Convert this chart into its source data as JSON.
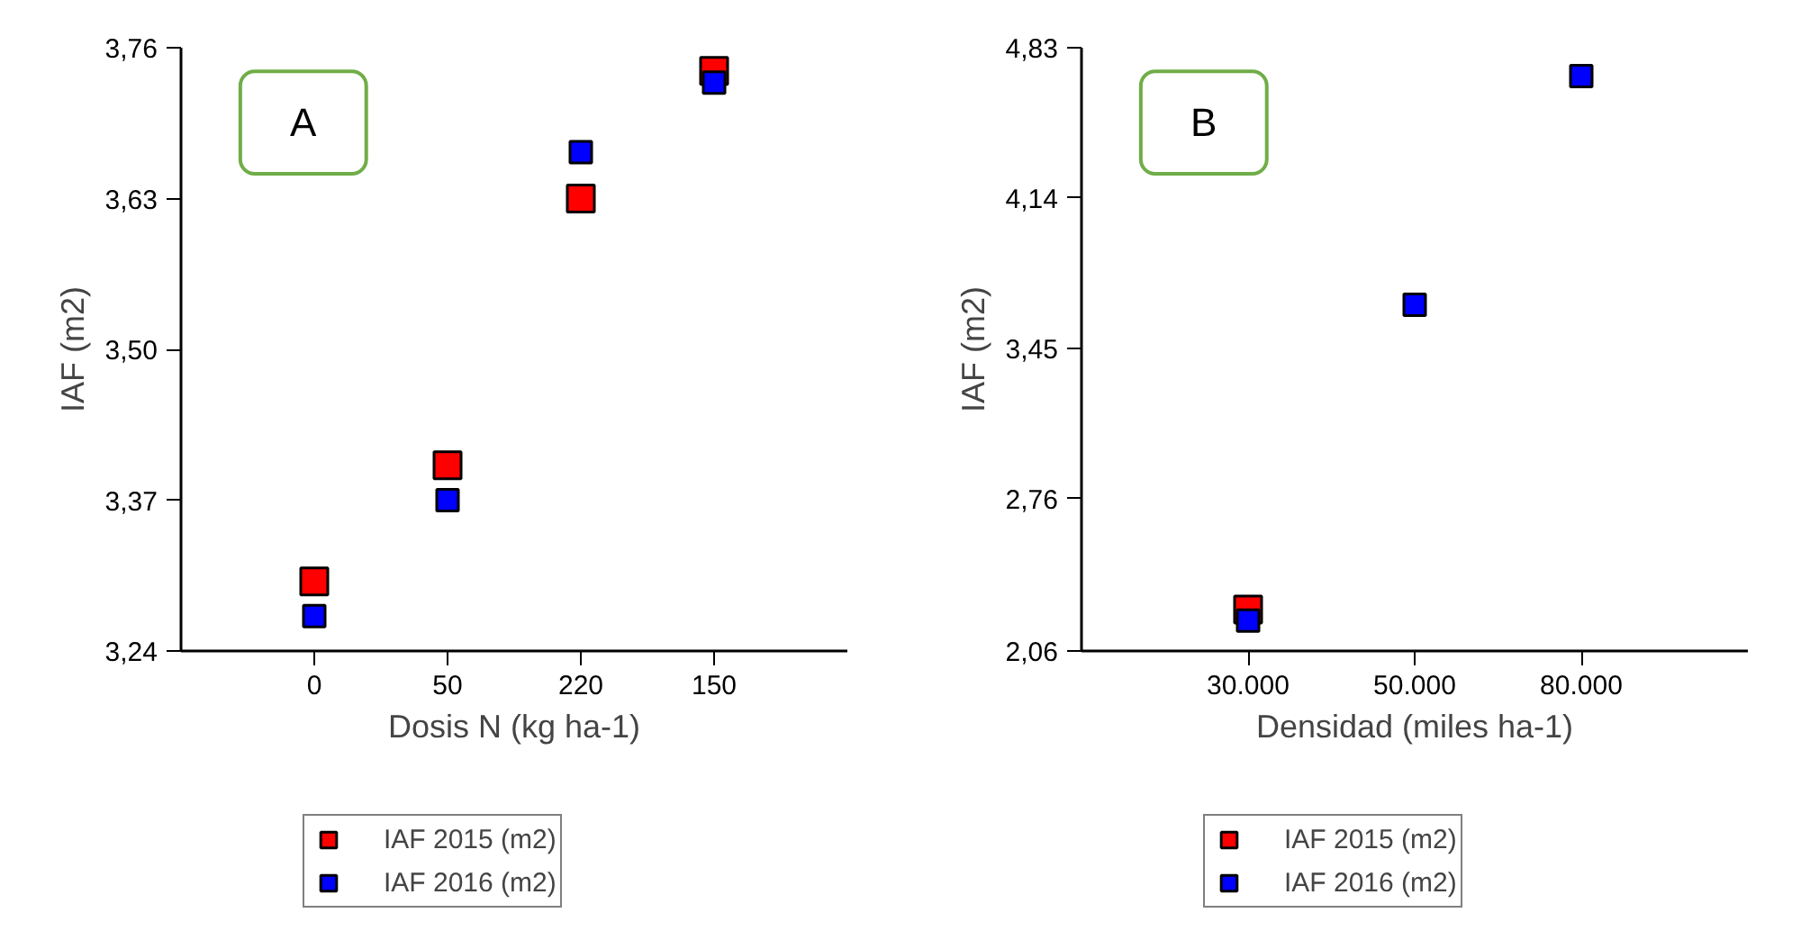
{
  "chart_data": [
    {
      "type": "scatter",
      "xlabel": "Dosis N (kg ha-1)",
      "ylabel": "IAF (m2)",
      "annotations": [
        "A"
      ],
      "categories": [
        "0",
        "50",
        "220",
        "150"
      ],
      "ylim": [
        3.24,
        3.76
      ],
      "yticks": [
        {
          "value": 3.24,
          "label": "3,24"
        },
        {
          "value": 3.37,
          "label": "3,37"
        },
        {
          "value": 3.5,
          "label": "3,50"
        },
        {
          "value": 3.63,
          "label": "3,63"
        },
        {
          "value": 3.76,
          "label": "3,76"
        }
      ],
      "marker": "square",
      "grid": false,
      "legend": "bottom",
      "series": [
        {
          "name": "IAF 2015 (m2)",
          "color": "#ff0000",
          "values": [
            3.3,
            3.4,
            3.63,
            3.74
          ]
        },
        {
          "name": "IAF 2016 (m2)",
          "color": "#0000ff",
          "values": [
            3.27,
            3.37,
            3.67,
            3.73
          ]
        }
      ]
    },
    {
      "type": "scatter",
      "xlabel": "Densidad (miles ha-1)",
      "ylabel": "IAF (m2)",
      "annotations": [
        "B"
      ],
      "categories": [
        "30.000",
        "50.000",
        "80.000"
      ],
      "ylim": [
        2.06,
        4.83
      ],
      "yticks": [
        {
          "value": 2.06,
          "label": "2,06"
        },
        {
          "value": 2.76,
          "label": "2,76"
        },
        {
          "value": 3.45,
          "label": "3,45"
        },
        {
          "value": 4.14,
          "label": "4,14"
        },
        {
          "value": 4.83,
          "label": "4,83"
        }
      ],
      "marker": "square",
      "grid": false,
      "legend": "bottom",
      "series": [
        {
          "name": "IAF 2015 (m2)",
          "color": "#ff0000",
          "values": [
            2.25,
            null,
            null
          ]
        },
        {
          "name": "IAF 2016 (m2)",
          "color": "#0000ff",
          "values": [
            2.2,
            3.65,
            4.7
          ]
        }
      ]
    }
  ]
}
